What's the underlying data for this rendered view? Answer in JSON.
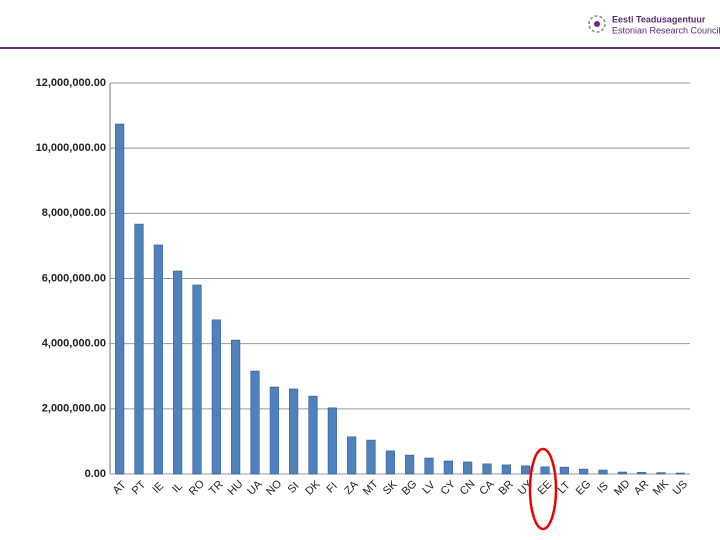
{
  "header": {
    "title": "Eesti Teadusagentuur",
    "subtitle": "Estonian Research Council"
  },
  "chart_data": {
    "type": "bar",
    "categories": [
      "AT",
      "PT",
      "IE",
      "IL",
      "RO",
      "TR",
      "HU",
      "UA",
      "NO",
      "SI",
      "DK",
      "FI",
      "ZA",
      "MT",
      "SK",
      "BG",
      "LV",
      "CY",
      "CN",
      "CA",
      "BR",
      "UY",
      "EE",
      "LT",
      "EG",
      "IS",
      "MD",
      "AR",
      "MK",
      "US"
    ],
    "values": [
      10740000,
      7670000,
      7030000,
      6230000,
      5800000,
      4730000,
      4110000,
      3160000,
      2670000,
      2610000,
      2390000,
      2030000,
      1140000,
      1040000,
      710000,
      580000,
      490000,
      400000,
      370000,
      310000,
      280000,
      250000,
      220000,
      210000,
      150000,
      120000,
      60000,
      50000,
      40000,
      30000
    ],
    "color": "#4f81bd",
    "ylim": [
      0,
      12000000
    ],
    "yticks": [
      {
        "value": 0,
        "label": "0.00"
      },
      {
        "value": 2000000,
        "label": "2,000,000.00"
      },
      {
        "value": 4000000,
        "label": "4,000,000.00"
      },
      {
        "value": 6000000,
        "label": "6,000,000.00"
      },
      {
        "value": 8000000,
        "label": "8,000,000.00"
      },
      {
        "value": 10000000,
        "label": "10,000,000.00"
      },
      {
        "value": 12000000,
        "label": "12,000,000.00"
      }
    ],
    "grid": true
  }
}
